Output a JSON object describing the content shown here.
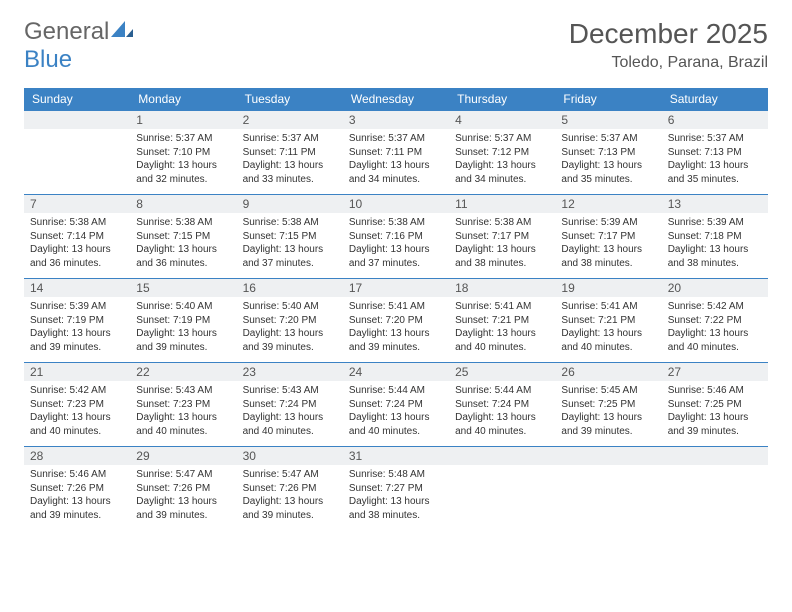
{
  "logo": {
    "text1": "General",
    "text2": "Blue"
  },
  "title": "December 2025",
  "location": "Toledo, Parana, Brazil",
  "colors": {
    "header_bg": "#3b82c4",
    "header_fg": "#ffffff",
    "daynum_bg": "#eef0f2",
    "border": "#3b82c4",
    "text": "#333333"
  },
  "fonts": {
    "title_size": 28,
    "location_size": 16,
    "dayhead_size": 12,
    "cell_size": 10
  },
  "dayNames": [
    "Sunday",
    "Monday",
    "Tuesday",
    "Wednesday",
    "Thursday",
    "Friday",
    "Saturday"
  ],
  "weeks": [
    [
      null,
      {
        "n": "1",
        "sr": "5:37 AM",
        "ss": "7:10 PM",
        "dl": "13 hours and 32 minutes."
      },
      {
        "n": "2",
        "sr": "5:37 AM",
        "ss": "7:11 PM",
        "dl": "13 hours and 33 minutes."
      },
      {
        "n": "3",
        "sr": "5:37 AM",
        "ss": "7:11 PM",
        "dl": "13 hours and 34 minutes."
      },
      {
        "n": "4",
        "sr": "5:37 AM",
        "ss": "7:12 PM",
        "dl": "13 hours and 34 minutes."
      },
      {
        "n": "5",
        "sr": "5:37 AM",
        "ss": "7:13 PM",
        "dl": "13 hours and 35 minutes."
      },
      {
        "n": "6",
        "sr": "5:37 AM",
        "ss": "7:13 PM",
        "dl": "13 hours and 35 minutes."
      }
    ],
    [
      {
        "n": "7",
        "sr": "5:38 AM",
        "ss": "7:14 PM",
        "dl": "13 hours and 36 minutes."
      },
      {
        "n": "8",
        "sr": "5:38 AM",
        "ss": "7:15 PM",
        "dl": "13 hours and 36 minutes."
      },
      {
        "n": "9",
        "sr": "5:38 AM",
        "ss": "7:15 PM",
        "dl": "13 hours and 37 minutes."
      },
      {
        "n": "10",
        "sr": "5:38 AM",
        "ss": "7:16 PM",
        "dl": "13 hours and 37 minutes."
      },
      {
        "n": "11",
        "sr": "5:38 AM",
        "ss": "7:17 PM",
        "dl": "13 hours and 38 minutes."
      },
      {
        "n": "12",
        "sr": "5:39 AM",
        "ss": "7:17 PM",
        "dl": "13 hours and 38 minutes."
      },
      {
        "n": "13",
        "sr": "5:39 AM",
        "ss": "7:18 PM",
        "dl": "13 hours and 38 minutes."
      }
    ],
    [
      {
        "n": "14",
        "sr": "5:39 AM",
        "ss": "7:19 PM",
        "dl": "13 hours and 39 minutes."
      },
      {
        "n": "15",
        "sr": "5:40 AM",
        "ss": "7:19 PM",
        "dl": "13 hours and 39 minutes."
      },
      {
        "n": "16",
        "sr": "5:40 AM",
        "ss": "7:20 PM",
        "dl": "13 hours and 39 minutes."
      },
      {
        "n": "17",
        "sr": "5:41 AM",
        "ss": "7:20 PM",
        "dl": "13 hours and 39 minutes."
      },
      {
        "n": "18",
        "sr": "5:41 AM",
        "ss": "7:21 PM",
        "dl": "13 hours and 40 minutes."
      },
      {
        "n": "19",
        "sr": "5:41 AM",
        "ss": "7:21 PM",
        "dl": "13 hours and 40 minutes."
      },
      {
        "n": "20",
        "sr": "5:42 AM",
        "ss": "7:22 PM",
        "dl": "13 hours and 40 minutes."
      }
    ],
    [
      {
        "n": "21",
        "sr": "5:42 AM",
        "ss": "7:23 PM",
        "dl": "13 hours and 40 minutes."
      },
      {
        "n": "22",
        "sr": "5:43 AM",
        "ss": "7:23 PM",
        "dl": "13 hours and 40 minutes."
      },
      {
        "n": "23",
        "sr": "5:43 AM",
        "ss": "7:24 PM",
        "dl": "13 hours and 40 minutes."
      },
      {
        "n": "24",
        "sr": "5:44 AM",
        "ss": "7:24 PM",
        "dl": "13 hours and 40 minutes."
      },
      {
        "n": "25",
        "sr": "5:44 AM",
        "ss": "7:24 PM",
        "dl": "13 hours and 40 minutes."
      },
      {
        "n": "26",
        "sr": "5:45 AM",
        "ss": "7:25 PM",
        "dl": "13 hours and 39 minutes."
      },
      {
        "n": "27",
        "sr": "5:46 AM",
        "ss": "7:25 PM",
        "dl": "13 hours and 39 minutes."
      }
    ],
    [
      {
        "n": "28",
        "sr": "5:46 AM",
        "ss": "7:26 PM",
        "dl": "13 hours and 39 minutes."
      },
      {
        "n": "29",
        "sr": "5:47 AM",
        "ss": "7:26 PM",
        "dl": "13 hours and 39 minutes."
      },
      {
        "n": "30",
        "sr": "5:47 AM",
        "ss": "7:26 PM",
        "dl": "13 hours and 39 minutes."
      },
      {
        "n": "31",
        "sr": "5:48 AM",
        "ss": "7:27 PM",
        "dl": "13 hours and 38 minutes."
      },
      null,
      null,
      null
    ]
  ],
  "labels": {
    "sunrise": "Sunrise:",
    "sunset": "Sunset:",
    "daylight": "Daylight:"
  }
}
